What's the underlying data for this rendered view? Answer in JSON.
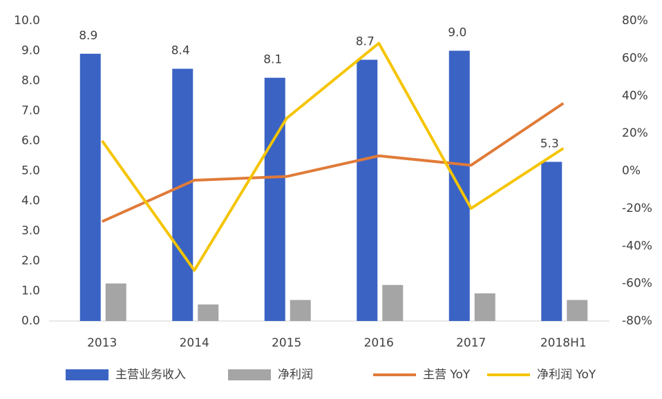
{
  "chart_data": {
    "type": "bar-line",
    "categories": [
      "2013",
      "2014",
      "2015",
      "2016",
      "2017",
      "2018H1"
    ],
    "series": [
      {
        "name": "主营业务收入",
        "color": "#3a63c4",
        "kind": "bar",
        "values": [
          8.9,
          8.4,
          8.1,
          8.7,
          9.0,
          5.3
        ],
        "value_labels": [
          "8.9",
          "8.4",
          "8.1",
          "8.7",
          "9.0",
          "5.3"
        ]
      },
      {
        "name": "净利润",
        "color": "#a5a5a5",
        "kind": "bar",
        "values": [
          1.25,
          0.55,
          0.7,
          1.2,
          0.92,
          0.7
        ]
      },
      {
        "name": "主营 YoY",
        "color": "#e07b39",
        "kind": "line",
        "axis": "y2",
        "values": [
          -27,
          -5,
          -3,
          8,
          3,
          36
        ]
      },
      {
        "name": "净利润 YoY",
        "color": "#f5c400",
        "kind": "line",
        "axis": "y2",
        "values": [
          16,
          -53,
          28,
          68,
          -20,
          12
        ]
      }
    ],
    "ylim": [
      0,
      10
    ],
    "yticks": [
      {
        "value": 0,
        "label": "0.0"
      },
      {
        "value": 1,
        "label": "1.0"
      },
      {
        "value": 2,
        "label": "2.0"
      },
      {
        "value": 3,
        "label": "3.0"
      },
      {
        "value": 4,
        "label": "4.0"
      },
      {
        "value": 5,
        "label": "5.0"
      },
      {
        "value": 6,
        "label": "6.0"
      },
      {
        "value": 7,
        "label": "7.0"
      },
      {
        "value": 8,
        "label": "8.0"
      },
      {
        "value": 9,
        "label": "9.0"
      },
      {
        "value": 10,
        "label": "10.0"
      }
    ],
    "y2lim": [
      -80,
      80
    ],
    "y2ticks": [
      {
        "value": -80,
        "label": "-80%"
      },
      {
        "value": -60,
        "label": "-60%"
      },
      {
        "value": -40,
        "label": "-40%"
      },
      {
        "value": -20,
        "label": "-20%"
      },
      {
        "value": 0,
        "label": "0%"
      },
      {
        "value": 20,
        "label": "20%"
      },
      {
        "value": 40,
        "label": "40%"
      },
      {
        "value": 60,
        "label": "60%"
      },
      {
        "value": 80,
        "label": "80%"
      }
    ]
  }
}
